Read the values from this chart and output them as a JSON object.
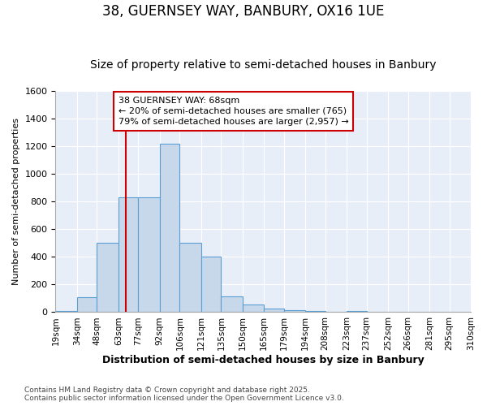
{
  "title": "38, GUERNSEY WAY, BANBURY, OX16 1UE",
  "subtitle": "Size of property relative to semi-detached houses in Banbury",
  "xlabel": "Distribution of semi-detached houses by size in Banbury",
  "ylabel": "Number of semi-detached properties",
  "bin_labels": [
    "19sqm",
    "34sqm",
    "48sqm",
    "63sqm",
    "77sqm",
    "92sqm",
    "106sqm",
    "121sqm",
    "135sqm",
    "150sqm",
    "165sqm",
    "179sqm",
    "194sqm",
    "208sqm",
    "223sqm",
    "237sqm",
    "252sqm",
    "266sqm",
    "281sqm",
    "295sqm",
    "310sqm"
  ],
  "bar_heights": [
    10,
    110,
    500,
    830,
    830,
    1220,
    500,
    400,
    115,
    55,
    25,
    15,
    10,
    0,
    10,
    0,
    0,
    0,
    0,
    0
  ],
  "bar_color": "#c8d8eb",
  "bar_edge_color": "#5a9fd4",
  "vline_x": 68,
  "vline_color": "#cc0000",
  "ylim": [
    0,
    1600
  ],
  "yticks": [
    0,
    200,
    400,
    600,
    800,
    1000,
    1200,
    1400,
    1600
  ],
  "annotation_text": "38 GUERNSEY WAY: 68sqm\n← 20% of semi-detached houses are smaller (765)\n79% of semi-detached houses are larger (2,957) →",
  "annotation_edge_color": "#cc0000",
  "footer_line1": "Contains HM Land Registry data © Crown copyright and database right 2025.",
  "footer_line2": "Contains public sector information licensed under the Open Government Licence v3.0.",
  "background_color": "#ffffff",
  "plot_bg_color": "#e8eef8",
  "grid_color": "#ffffff",
  "title_fontsize": 12,
  "subtitle_fontsize": 10,
  "bin_edges": [
    19,
    34,
    48,
    63,
    77,
    92,
    106,
    121,
    135,
    150,
    165,
    179,
    194,
    208,
    223,
    237,
    252,
    266,
    281,
    295,
    310
  ]
}
